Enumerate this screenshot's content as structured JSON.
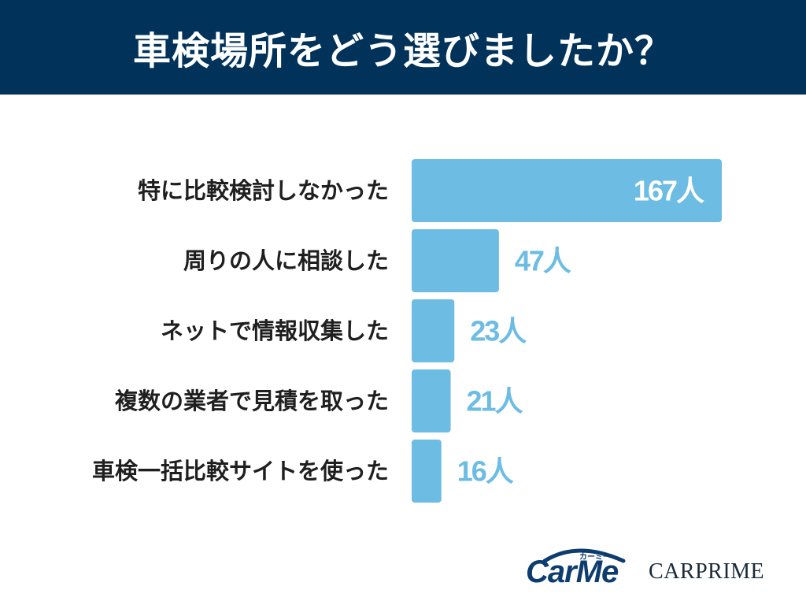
{
  "header": {
    "title": "車検場所をどう選びましたか？"
  },
  "chart_data": {
    "type": "bar",
    "orientation": "horizontal",
    "title": "車検場所をどう選びましたか？",
    "categories": [
      "特に比較検討しなかった",
      "周りの人に相談した",
      "ネットで情報収集した",
      "複数の業者で見積を取った",
      "車検一括比較サイトを使った"
    ],
    "values": [
      167,
      47,
      23,
      21,
      16
    ],
    "value_labels": [
      "167人",
      "47人",
      "23人",
      "21人",
      "16人"
    ],
    "unit": "人",
    "xlim": [
      0,
      167
    ],
    "grid": false,
    "legend": "none",
    "colors": {
      "bar": "#6cbce3",
      "value_text_inside": "#ffffff",
      "value_text_outside": "#6cbce3",
      "header_bg": "#01325a"
    }
  },
  "logos": {
    "carme": {
      "text": "CarMe",
      "sub": "カーミー"
    },
    "carprime": {
      "text": "CARPRIME"
    }
  }
}
